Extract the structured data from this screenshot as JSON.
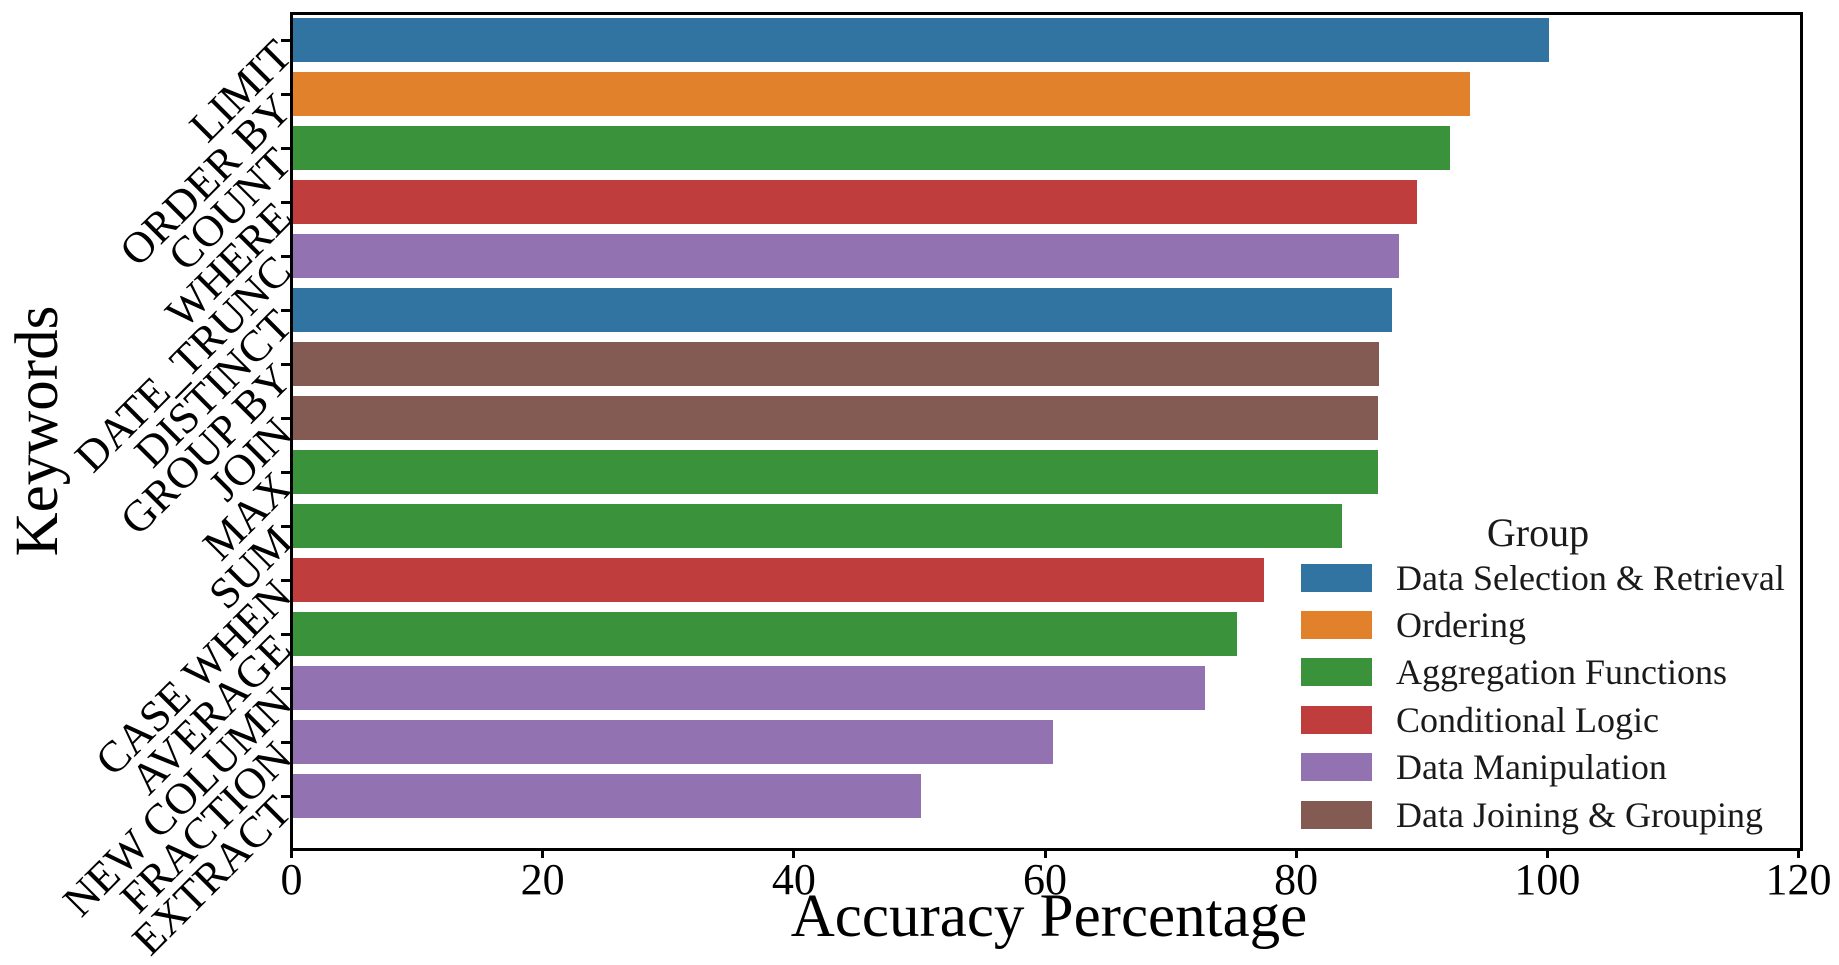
{
  "chart_data": {
    "type": "bar",
    "orientation": "horizontal",
    "title": "",
    "xlabel": "Accuracy Percentage",
    "ylabel": "Keywords",
    "xlim": [
      0,
      120
    ],
    "xticks": [
      0,
      20,
      40,
      60,
      80,
      100,
      120
    ],
    "grid": false,
    "categories": [
      "LIMIT",
      "ORDER BY",
      "COUNT",
      "WHERE",
      "DATE_TRUNC",
      "DISTINCT",
      "GROUP BY",
      "JOIN",
      "MAX",
      "SUM",
      "CASE WHEN",
      "AVERAGE",
      "NEW COLUMN",
      "FRACTION",
      "EXTRACT"
    ],
    "values": [
      100,
      93.7,
      92.1,
      89.5,
      88.1,
      87.5,
      86.5,
      86.4,
      86.4,
      83.5,
      77.3,
      75.2,
      72.6,
      60.5,
      50
    ],
    "bar_groups": [
      "Data Selection & Retrieval",
      "Ordering",
      "Aggregation Functions",
      "Conditional Logic",
      "Data Manipulation",
      "Data Selection & Retrieval",
      "Data Joining & Grouping",
      "Data Joining & Grouping",
      "Aggregation Functions",
      "Aggregation Functions",
      "Conditional Logic",
      "Aggregation Functions",
      "Data Manipulation",
      "Data Manipulation",
      "Data Manipulation"
    ],
    "legend": {
      "title": "Group",
      "position": "lower right inside",
      "entries": [
        {
          "label": "Data Selection & Retrieval",
          "color": "#3274A1"
        },
        {
          "label": "Ordering",
          "color": "#E1812C"
        },
        {
          "label": "Aggregation Functions",
          "color": "#3A923A"
        },
        {
          "label": "Conditional Logic",
          "color": "#C03D3E"
        },
        {
          "label": "Data Manipulation",
          "color": "#9372B2"
        },
        {
          "label": "Data Joining & Grouping",
          "color": "#845B53"
        }
      ]
    }
  },
  "colors": {
    "background": "#ffffff",
    "axis": "#000000",
    "text": "#000000",
    "legend_text": "#1a1a1a"
  }
}
